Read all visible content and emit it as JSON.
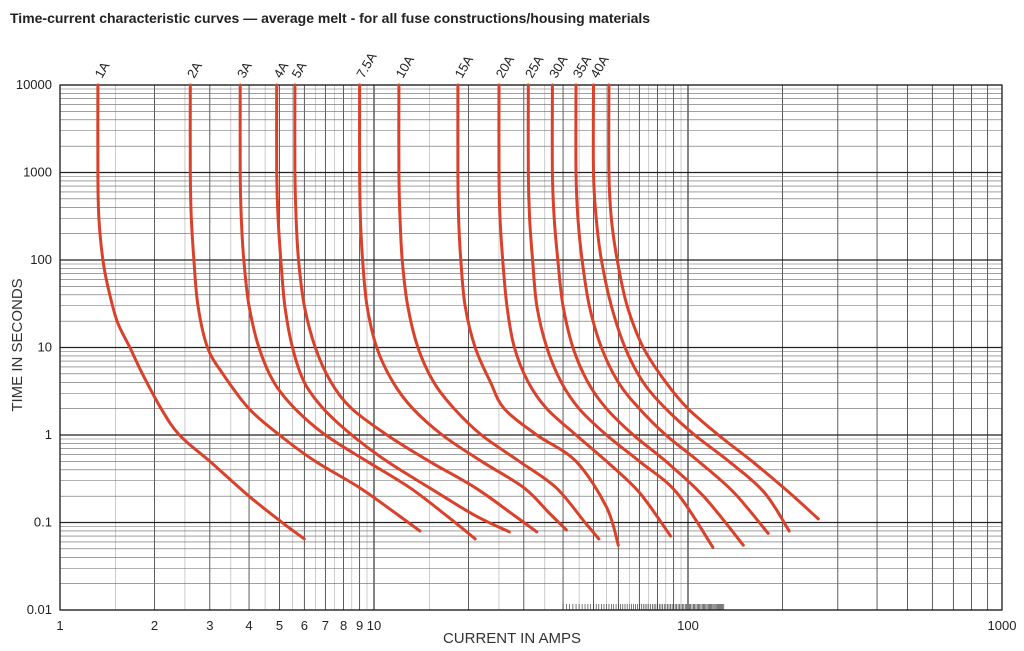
{
  "chart_data": {
    "type": "line",
    "title": "Time-current characteristic curves — average melt - for all fuse constructions/housing materials",
    "xlabel": "CURRENT IN AMPS",
    "ylabel": "TIME IN SECONDS",
    "x_scale": "log",
    "y_scale": "log",
    "xlim": [
      1,
      1000
    ],
    "ylim": [
      0.01,
      10000
    ],
    "x_tick_labels": [
      "1",
      "2",
      "3",
      "4",
      "5",
      "6",
      "7",
      "8",
      "9",
      "10",
      "100",
      "1000"
    ],
    "y_tick_labels": [
      "0.01",
      "0.1",
      "1",
      "10",
      "100",
      "1000",
      "10000"
    ],
    "grid": true,
    "curve_color": "#d9412b",
    "series": [
      {
        "name": "1A",
        "x": [
          1.32,
          1.32,
          1.33,
          1.37,
          1.42,
          1.52,
          1.67,
          1.83,
          2.1,
          2.4,
          3.0,
          4.0,
          5.1,
          6.0
        ],
        "y": [
          10000,
          1000,
          300,
          100,
          50,
          20,
          10,
          5,
          2,
          1,
          0.5,
          0.2,
          0.1,
          0.065
        ]
      },
      {
        "name": "2A",
        "x": [
          2.6,
          2.6,
          2.62,
          2.67,
          2.75,
          2.95,
          3.3,
          4.0,
          5.0,
          6.5,
          9.0,
          12.0,
          14.0
        ],
        "y": [
          10000,
          1000,
          300,
          100,
          30,
          10,
          5,
          2,
          1,
          0.5,
          0.25,
          0.12,
          0.08
        ]
      },
      {
        "name": "3A",
        "x": [
          3.75,
          3.75,
          3.78,
          3.85,
          4.0,
          4.3,
          4.8,
          5.6,
          7.0,
          9.5,
          13.0,
          17.0,
          21.0
        ],
        "y": [
          10000,
          1000,
          300,
          100,
          30,
          10,
          4,
          2,
          1,
          0.5,
          0.25,
          0.12,
          0.065
        ]
      },
      {
        "name": "4A",
        "x": [
          4.9,
          4.9,
          4.95,
          5.05,
          5.2,
          5.5,
          6.0,
          6.9,
          8.5,
          11.0,
          15.0,
          21.0,
          27.0
        ],
        "y": [
          10000,
          1000,
          300,
          100,
          30,
          10,
          4,
          2,
          1,
          0.5,
          0.25,
          0.12,
          0.078
        ]
      },
      {
        "name": "5A",
        "x": [
          5.6,
          5.6,
          5.65,
          5.75,
          6.0,
          6.5,
          7.3,
          8.5,
          11.0,
          15.0,
          21.0,
          28.0,
          33.0
        ],
        "y": [
          10000,
          1000,
          300,
          100,
          30,
          10,
          4,
          2,
          1,
          0.5,
          0.25,
          0.12,
          0.078
        ]
      },
      {
        "name": "7.5A",
        "x": [
          9.0,
          9.0,
          9.05,
          9.2,
          9.5,
          10.2,
          11.5,
          13.3,
          16.5,
          22.0,
          30.0,
          36.0,
          41.0
        ],
        "y": [
          10000,
          1000,
          300,
          100,
          30,
          10,
          4,
          2,
          1,
          0.5,
          0.25,
          0.13,
          0.082
        ]
      },
      {
        "name": "10A",
        "x": [
          12.0,
          12.0,
          12.1,
          12.3,
          12.8,
          13.8,
          15.5,
          18.0,
          22.0,
          29.0,
          38.0,
          47.0,
          52.0
        ],
        "y": [
          10000,
          1000,
          300,
          100,
          30,
          10,
          4,
          2,
          1,
          0.5,
          0.25,
          0.1,
          0.065
        ]
      },
      {
        "name": "15A",
        "x": [
          18.5,
          18.5,
          18.6,
          18.9,
          19.5,
          21.0,
          23.5,
          26.0,
          33.0,
          44.0,
          55.0,
          60.0
        ],
        "y": [
          10000,
          1000,
          300,
          100,
          30,
          10,
          4,
          2,
          1,
          0.5,
          0.15,
          0.055
        ]
      },
      {
        "name": "20A",
        "x": [
          25.0,
          25.0,
          25.2,
          25.7,
          26.5,
          28.0,
          31.0,
          35.5,
          44.0,
          55.0,
          70.0,
          88.0
        ],
        "y": [
          10000,
          1000,
          300,
          100,
          30,
          10,
          4,
          2,
          1,
          0.5,
          0.22,
          0.07
        ]
      },
      {
        "name": "25A",
        "x": [
          31.0,
          31.0,
          31.3,
          32.0,
          33.0,
          35.5,
          39.5,
          45.0,
          55.0,
          70.0,
          92.0,
          120.0
        ],
        "y": [
          10000,
          1000,
          300,
          100,
          30,
          10,
          4,
          2,
          1,
          0.5,
          0.22,
          0.052
        ]
      },
      {
        "name": "30A",
        "x": [
          37.0,
          37.0,
          37.5,
          38.5,
          40.0,
          43.0,
          48.0,
          55.0,
          67.0,
          85.0,
          112.0,
          150.0
        ],
        "y": [
          10000,
          1000,
          300,
          100,
          30,
          10,
          4,
          2,
          1,
          0.5,
          0.2,
          0.055
        ]
      },
      {
        "name": "35A",
        "x": [
          44.0,
          44.0,
          44.6,
          46.0,
          48.5,
          53.0,
          60.0,
          70.0,
          85.0,
          108.0,
          140.0,
          180.0
        ],
        "y": [
          10000,
          1000,
          300,
          100,
          30,
          10,
          4,
          2,
          1,
          0.5,
          0.22,
          0.075
        ]
      },
      {
        "name": "40A",
        "x": [
          50.0,
          50.0,
          51.0,
          53.0,
          57.0,
          63.0,
          72.0,
          85.0,
          105.0,
          135.0,
          175.0,
          210.0
        ],
        "y": [
          10000,
          1000,
          300,
          100,
          30,
          10,
          4,
          2,
          1,
          0.5,
          0.22,
          0.08
        ]
      },
      {
        "name": "",
        "x": [
          56.0,
          56.0,
          57.0,
          59.5,
          64.0,
          72.0,
          85.0,
          100.0,
          125.0,
          160.0,
          210.0,
          260.0
        ],
        "y": [
          10000,
          1000,
          300,
          100,
          30,
          10,
          4,
          2,
          1,
          0.5,
          0.22,
          0.11
        ]
      }
    ]
  }
}
